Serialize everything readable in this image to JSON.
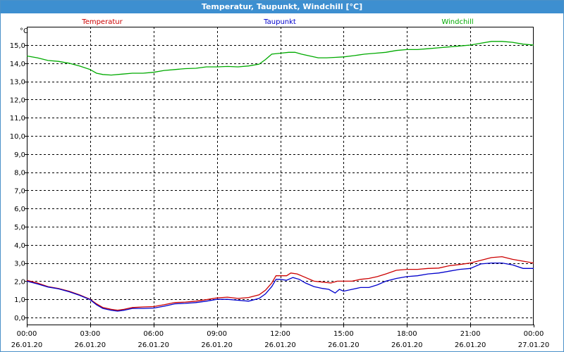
{
  "window": {
    "title": "Temperatur, Taupunkt, Windchill [°C]"
  },
  "chart_data": {
    "type": "line",
    "title": "Temperatur, Taupunkt, Windchill [°C]",
    "ylabel": "°C",
    "ylim": [
      -0.2,
      16.0
    ],
    "yticks": [
      "0,0",
      "1,0",
      "2,0",
      "3,0",
      "4,0",
      "5,0",
      "6,0",
      "7,0",
      "8,0",
      "9,0",
      "10,0",
      "11,0",
      "12,0",
      "13,0",
      "14,0",
      "15,0"
    ],
    "ytick_values": [
      0,
      1,
      2,
      3,
      4,
      5,
      6,
      7,
      8,
      9,
      10,
      11,
      12,
      13,
      14,
      15
    ],
    "xlim_hours": [
      0,
      24
    ],
    "xticks": [
      {
        "h": 0,
        "time": "00:00",
        "date": "26.01.20"
      },
      {
        "h": 3,
        "time": "03:00",
        "date": "26.01.20"
      },
      {
        "h": 6,
        "time": "06:00",
        "date": "26.01.20"
      },
      {
        "h": 9,
        "time": "09:00",
        "date": "26.01.20"
      },
      {
        "h": 12,
        "time": "12:00",
        "date": "26.01.20"
      },
      {
        "h": 15,
        "time": "15:00",
        "date": "26.01.20"
      },
      {
        "h": 18,
        "time": "18:00",
        "date": "26.01.20"
      },
      {
        "h": 21,
        "time": "21:00",
        "date": "26.01.20"
      },
      {
        "h": 24,
        "time": "00:00",
        "date": "27.01.20"
      }
    ],
    "grid": true,
    "legend": "top",
    "series": [
      {
        "name": "Temperatur",
        "color": "#cc0000",
        "points": [
          [
            0,
            2.05
          ],
          [
            0.5,
            1.9
          ],
          [
            1,
            1.7
          ],
          [
            1.5,
            1.6
          ],
          [
            2,
            1.45
          ],
          [
            2.5,
            1.25
          ],
          [
            3,
            1.0
          ],
          [
            3.3,
            0.75
          ],
          [
            3.6,
            0.55
          ],
          [
            4,
            0.45
          ],
          [
            4.3,
            0.4
          ],
          [
            4.6,
            0.45
          ],
          [
            5,
            0.55
          ],
          [
            5.5,
            0.58
          ],
          [
            6,
            0.6
          ],
          [
            6.5,
            0.7
          ],
          [
            7,
            0.82
          ],
          [
            7.5,
            0.85
          ],
          [
            8,
            0.9
          ],
          [
            8.5,
            0.98
          ],
          [
            9,
            1.08
          ],
          [
            9.5,
            1.12
          ],
          [
            10,
            1.05
          ],
          [
            10.5,
            1.1
          ],
          [
            11,
            1.25
          ],
          [
            11.3,
            1.5
          ],
          [
            11.6,
            1.9
          ],
          [
            11.8,
            2.3
          ],
          [
            12,
            2.3
          ],
          [
            12.3,
            2.3
          ],
          [
            12.5,
            2.45
          ],
          [
            12.8,
            2.4
          ],
          [
            13.2,
            2.2
          ],
          [
            13.6,
            2.0
          ],
          [
            14,
            1.95
          ],
          [
            14.4,
            1.9
          ],
          [
            14.7,
            2.0
          ],
          [
            15,
            2.0
          ],
          [
            15.4,
            2.0
          ],
          [
            15.8,
            2.1
          ],
          [
            16.2,
            2.15
          ],
          [
            16.6,
            2.25
          ],
          [
            17,
            2.4
          ],
          [
            17.5,
            2.6
          ],
          [
            18,
            2.65
          ],
          [
            18.5,
            2.65
          ],
          [
            19,
            2.7
          ],
          [
            19.5,
            2.72
          ],
          [
            20,
            2.85
          ],
          [
            20.5,
            2.92
          ],
          [
            21,
            3.0
          ],
          [
            21.5,
            3.15
          ],
          [
            22,
            3.3
          ],
          [
            22.5,
            3.35
          ],
          [
            23,
            3.2
          ],
          [
            23.5,
            3.1
          ],
          [
            24,
            3.0
          ]
        ]
      },
      {
        "name": "Taupunkt",
        "color": "#0000cc",
        "points": [
          [
            0,
            2.0
          ],
          [
            0.5,
            1.85
          ],
          [
            1,
            1.68
          ],
          [
            1.5,
            1.58
          ],
          [
            2,
            1.42
          ],
          [
            2.5,
            1.22
          ],
          [
            3,
            0.98
          ],
          [
            3.3,
            0.7
          ],
          [
            3.6,
            0.5
          ],
          [
            4,
            0.4
          ],
          [
            4.3,
            0.35
          ],
          [
            4.6,
            0.4
          ],
          [
            5,
            0.5
          ],
          [
            5.5,
            0.5
          ],
          [
            6,
            0.52
          ],
          [
            6.5,
            0.62
          ],
          [
            7,
            0.75
          ],
          [
            7.5,
            0.78
          ],
          [
            8,
            0.82
          ],
          [
            8.5,
            0.9
          ],
          [
            9,
            1.0
          ],
          [
            9.5,
            1.0
          ],
          [
            10,
            0.95
          ],
          [
            10.5,
            0.9
          ],
          [
            11,
            1.05
          ],
          [
            11.3,
            1.3
          ],
          [
            11.6,
            1.7
          ],
          [
            11.8,
            2.1
          ],
          [
            12,
            2.1
          ],
          [
            12.3,
            2.05
          ],
          [
            12.6,
            2.2
          ],
          [
            12.9,
            2.1
          ],
          [
            13.2,
            1.9
          ],
          [
            13.6,
            1.7
          ],
          [
            14,
            1.6
          ],
          [
            14.3,
            1.55
          ],
          [
            14.6,
            1.35
          ],
          [
            14.8,
            1.55
          ],
          [
            15,
            1.45
          ],
          [
            15.4,
            1.55
          ],
          [
            15.8,
            1.65
          ],
          [
            16.2,
            1.65
          ],
          [
            16.6,
            1.8
          ],
          [
            17,
            2.0
          ],
          [
            17.5,
            2.15
          ],
          [
            18,
            2.25
          ],
          [
            18.5,
            2.3
          ],
          [
            19,
            2.4
          ],
          [
            19.5,
            2.45
          ],
          [
            20,
            2.55
          ],
          [
            20.5,
            2.65
          ],
          [
            21,
            2.7
          ],
          [
            21.5,
            2.95
          ],
          [
            22,
            3.0
          ],
          [
            22.5,
            3.0
          ],
          [
            23,
            2.9
          ],
          [
            23.5,
            2.7
          ],
          [
            24,
            2.7
          ]
        ]
      },
      {
        "name": "Windchill",
        "color": "#00aa00",
        "points": [
          [
            0,
            14.4
          ],
          [
            0.5,
            14.3
          ],
          [
            1,
            14.15
          ],
          [
            1.5,
            14.1
          ],
          [
            2,
            14.0
          ],
          [
            2.5,
            13.85
          ],
          [
            3,
            13.65
          ],
          [
            3.3,
            13.45
          ],
          [
            3.6,
            13.38
          ],
          [
            4,
            13.35
          ],
          [
            4.5,
            13.4
          ],
          [
            5,
            13.45
          ],
          [
            5.5,
            13.45
          ],
          [
            6,
            13.5
          ],
          [
            6.5,
            13.6
          ],
          [
            7,
            13.65
          ],
          [
            7.5,
            13.7
          ],
          [
            8,
            13.72
          ],
          [
            8.5,
            13.8
          ],
          [
            9,
            13.8
          ],
          [
            9.5,
            13.82
          ],
          [
            10,
            13.8
          ],
          [
            10.5,
            13.85
          ],
          [
            11,
            13.95
          ],
          [
            11.3,
            14.2
          ],
          [
            11.6,
            14.5
          ],
          [
            12,
            14.55
          ],
          [
            12.4,
            14.6
          ],
          [
            12.7,
            14.6
          ],
          [
            13,
            14.5
          ],
          [
            13.4,
            14.4
          ],
          [
            13.8,
            14.3
          ],
          [
            14.2,
            14.3
          ],
          [
            14.6,
            14.32
          ],
          [
            15,
            14.35
          ],
          [
            15.5,
            14.42
          ],
          [
            16,
            14.5
          ],
          [
            16.5,
            14.55
          ],
          [
            17,
            14.6
          ],
          [
            17.5,
            14.7
          ],
          [
            18,
            14.75
          ],
          [
            18.5,
            14.75
          ],
          [
            19,
            14.8
          ],
          [
            19.5,
            14.85
          ],
          [
            20,
            14.9
          ],
          [
            20.5,
            14.95
          ],
          [
            21,
            15.0
          ],
          [
            21.5,
            15.1
          ],
          [
            22,
            15.2
          ],
          [
            22.5,
            15.2
          ],
          [
            23,
            15.15
          ],
          [
            23.5,
            15.05
          ],
          [
            24,
            15.0
          ]
        ]
      }
    ]
  }
}
